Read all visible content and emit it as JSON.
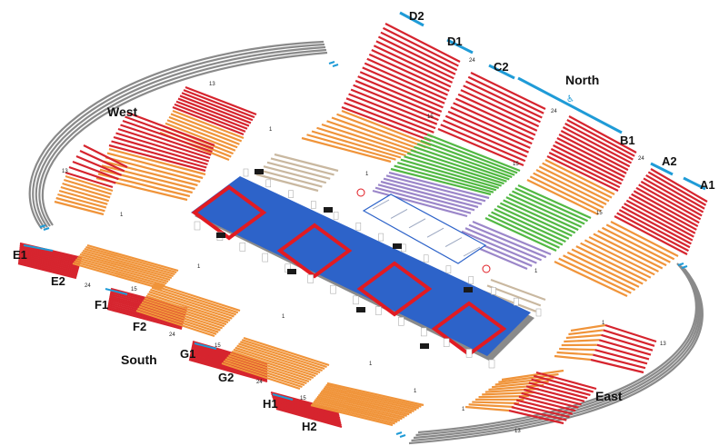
{
  "colors": {
    "red": "#d6242e",
    "orange": "#f0943a",
    "green": "#52b843",
    "purple": "#9b86c9",
    "beige": "#c9b8a0",
    "floor": "#2d63c9",
    "mat": "#e11b22",
    "accent": "#1f9bd7",
    "track": "#8a8a8a"
  },
  "areas": {
    "north": "North",
    "west": "West",
    "south": "South",
    "east": "East"
  },
  "sections": {
    "a1": "A1",
    "a2": "A2",
    "b1": "B1",
    "c2": "C2",
    "d1": "D1",
    "d2": "D2",
    "e1": "E1",
    "e2": "E2",
    "f1": "F1",
    "f2": "F2",
    "g1": "G1",
    "g2": "G2",
    "h1": "H1",
    "h2": "H2"
  },
  "row_numbers": {
    "west_top": "13",
    "west_right": "1",
    "west_left": "13",
    "west_bottom": "1",
    "d_right": "24",
    "d_bottom": "15",
    "center_top": "1",
    "c_24": "24",
    "c_15": "15",
    "b_24": "24",
    "a_15": "15",
    "a_1": "1",
    "e_24": "24",
    "e_1": "1",
    "f_15": "15",
    "f_24": "24",
    "f_1": "1",
    "g_15": "15",
    "g_24": "24",
    "g_1": "1",
    "h_15": "15",
    "h_1": "1",
    "east_1a": "1",
    "east_13a": "13",
    "east_1b": "1",
    "east_13b": "13"
  },
  "icons": [
    "wheelchair-icon",
    "camera-icon"
  ]
}
